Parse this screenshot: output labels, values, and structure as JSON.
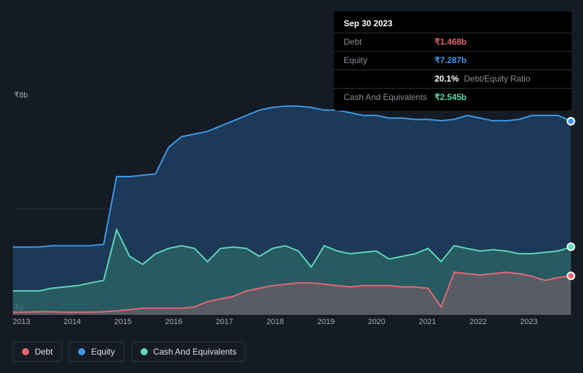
{
  "tooltip": {
    "date": "Sep 30 2023",
    "debt_label": "Debt",
    "debt_value": "₹1.468b",
    "equity_label": "Equity",
    "equity_value": "₹7.287b",
    "ratio_value": "20.1%",
    "ratio_label": "Debt/Equity Ratio",
    "cash_label": "Cash And Equivalents",
    "cash_value": "₹2.545b"
  },
  "chart": {
    "type": "area",
    "y_max_label": "₹8b",
    "y_zero_label": "₹0",
    "ylim": [
      0,
      8
    ],
    "x_labels": [
      "2013",
      "2014",
      "2015",
      "2016",
      "2017",
      "2018",
      "2019",
      "2020",
      "2021",
      "2022",
      "2023"
    ],
    "background_color": "#151b24",
    "grid_color": "rgba(255,255,255,0.08)",
    "label_color": "#a7adb5",
    "label_fontsize": 11,
    "series": {
      "debt": {
        "color": "#e66771",
        "fill": "rgba(230,103,113,0.25)"
      },
      "equity": {
        "color": "#3d9ae8",
        "fill": "rgba(35,82,130,0.55)"
      },
      "cash": {
        "color": "#5fd9b8",
        "fill": "rgba(56,130,114,0.45)"
      }
    },
    "x_values": [
      2013,
      2013.25,
      2013.5,
      2013.75,
      2014,
      2014.25,
      2014.5,
      2014.75,
      2015,
      2015.25,
      2015.5,
      2015.75,
      2016,
      2016.25,
      2016.5,
      2016.75,
      2017,
      2017.25,
      2017.5,
      2017.75,
      2018,
      2018.25,
      2018.5,
      2018.75,
      2019,
      2019.25,
      2019.5,
      2019.75,
      2020,
      2020.25,
      2020.5,
      2020.75,
      2021,
      2021.25,
      2021.5,
      2021.75,
      2022,
      2022.25,
      2022.5,
      2022.75,
      2023,
      2023.25,
      2023.5,
      2023.75
    ],
    "equity_values": [
      2.55,
      2.55,
      2.55,
      2.6,
      2.6,
      2.6,
      2.6,
      2.65,
      5.2,
      5.2,
      5.25,
      5.3,
      6.3,
      6.7,
      6.8,
      6.9,
      7.1,
      7.3,
      7.5,
      7.7,
      7.8,
      7.85,
      7.85,
      7.8,
      7.7,
      7.7,
      7.6,
      7.5,
      7.5,
      7.4,
      7.4,
      7.35,
      7.35,
      7.3,
      7.35,
      7.5,
      7.4,
      7.3,
      7.3,
      7.35,
      7.5,
      7.5,
      7.5,
      7.29
    ],
    "cash_values": [
      0.9,
      0.9,
      0.9,
      1.0,
      1.05,
      1.1,
      1.2,
      1.3,
      3.2,
      2.2,
      1.9,
      2.3,
      2.5,
      2.6,
      2.5,
      2.0,
      2.5,
      2.55,
      2.5,
      2.2,
      2.5,
      2.6,
      2.4,
      1.8,
      2.6,
      2.4,
      2.3,
      2.35,
      2.4,
      2.1,
      2.2,
      2.3,
      2.5,
      2.0,
      2.6,
      2.5,
      2.4,
      2.45,
      2.4,
      2.3,
      2.3,
      2.35,
      2.4,
      2.55
    ],
    "debt_values": [
      0.1,
      0.1,
      0.12,
      0.12,
      0.1,
      0.1,
      0.1,
      0.12,
      0.15,
      0.2,
      0.25,
      0.25,
      0.25,
      0.25,
      0.3,
      0.5,
      0.6,
      0.7,
      0.9,
      1.0,
      1.1,
      1.15,
      1.2,
      1.2,
      1.15,
      1.1,
      1.05,
      1.1,
      1.1,
      1.1,
      1.05,
      1.05,
      1.0,
      0.3,
      1.6,
      1.55,
      1.5,
      1.55,
      1.6,
      1.55,
      1.45,
      1.3,
      1.4,
      1.47
    ]
  },
  "legend": {
    "debt": "Debt",
    "equity": "Equity",
    "cash": "Cash And Equivalents"
  }
}
